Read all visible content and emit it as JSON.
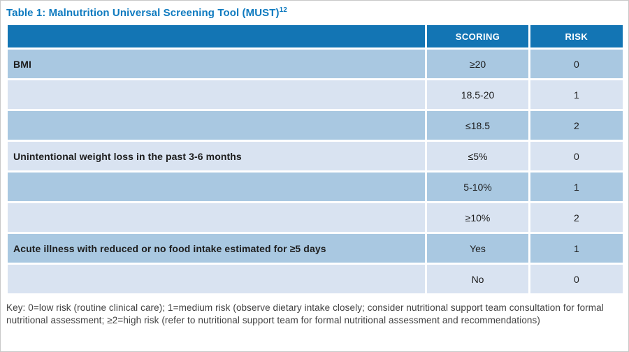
{
  "title": {
    "text": "Table 1: Malnutrition Universal Screening Tool (MUST)",
    "superscript": "12"
  },
  "table": {
    "column_headers": {
      "criteria": "",
      "scoring": "SCORING",
      "risk": "RISK"
    },
    "rows": [
      {
        "criteria": "BMI",
        "scoring": "≥20",
        "risk": "0"
      },
      {
        "criteria": "",
        "scoring": "18.5-20",
        "risk": "1"
      },
      {
        "criteria": "",
        "scoring": "≤18.5",
        "risk": "2"
      },
      {
        "criteria": "Unintentional weight loss in the past 3-6 months",
        "scoring": "≤5%",
        "risk": "0"
      },
      {
        "criteria": "",
        "scoring": "5-10%",
        "risk": "1"
      },
      {
        "criteria": "",
        "scoring": "≥10%",
        "risk": "2"
      },
      {
        "criteria": "Acute illness with reduced or no food intake estimated for ≥5 days",
        "scoring": "Yes",
        "risk": "1"
      },
      {
        "criteria": "",
        "scoring": "No",
        "risk": "0"
      }
    ]
  },
  "key": "Key: 0=low risk (routine clinical care); 1=medium risk (observe dietary intake closely; consider nutritional support team consultation for formal nutritional assessment; ≥2=high risk (refer to nutritional support team for formal nutritional assessment and recommendations)",
  "colors": {
    "title_blue": "#0e7abf",
    "header_blue": "#1375b4",
    "row_medium_blue": "#a9c8e1",
    "row_light_blue": "#d9e3f1",
    "key_text_gray": "#414141"
  }
}
